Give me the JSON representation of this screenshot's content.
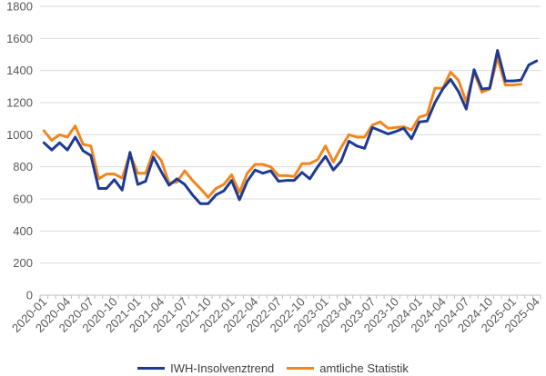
{
  "chart_data": {
    "type": "line",
    "title": "",
    "xlabel": "",
    "ylabel": "",
    "ylim": [
      0,
      1800
    ],
    "yticks": [
      "0",
      "200",
      "400",
      "600",
      "800",
      "1000",
      "1200",
      "1400",
      "1600",
      "1800"
    ],
    "grid": "horizontal",
    "legend": "bottom",
    "x_tick_labels": [
      "2020-01",
      "2020-04",
      "2020-07",
      "2020-10",
      "2021-01",
      "2021-04",
      "2021-07",
      "2021-10",
      "2022-01",
      "2022-04",
      "2022-07",
      "2022-10",
      "2023-01",
      "2023-04",
      "2023-07",
      "2023-10",
      "2024-01",
      "2024-04",
      "2024-07",
      "2024-10",
      "2025-01",
      "2025-04"
    ],
    "x": [
      "2020-01",
      "2020-02",
      "2020-03",
      "2020-04",
      "2020-05",
      "2020-06",
      "2020-07",
      "2020-08",
      "2020-09",
      "2020-10",
      "2020-11",
      "2020-12",
      "2021-01",
      "2021-02",
      "2021-03",
      "2021-04",
      "2021-05",
      "2021-06",
      "2021-07",
      "2021-08",
      "2021-09",
      "2021-10",
      "2021-11",
      "2021-12",
      "2022-01",
      "2022-02",
      "2022-03",
      "2022-04",
      "2022-05",
      "2022-06",
      "2022-07",
      "2022-08",
      "2022-09",
      "2022-10",
      "2022-11",
      "2022-12",
      "2023-01",
      "2023-02",
      "2023-03",
      "2023-04",
      "2023-05",
      "2023-06",
      "2023-07",
      "2023-08",
      "2023-09",
      "2023-10",
      "2023-11",
      "2023-12",
      "2024-01",
      "2024-02",
      "2024-03",
      "2024-04",
      "2024-05",
      "2024-06",
      "2024-07",
      "2024-08",
      "2024-09",
      "2024-10",
      "2024-11",
      "2024-12",
      "2025-01",
      "2025-02",
      "2025-03",
      "2025-04"
    ],
    "series": [
      {
        "name": "IWH-Insolvenztrend",
        "color": "#1F3A93",
        "values": [
          950,
          905,
          950,
          905,
          985,
          900,
          870,
          665,
          665,
          720,
          655,
          890,
          690,
          710,
          860,
          770,
          685,
          725,
          690,
          625,
          570,
          570,
          625,
          650,
          715,
          595,
          710,
          780,
          760,
          775,
          710,
          715,
          715,
          765,
          725,
          800,
          865,
          780,
          835,
          960,
          930,
          915,
          1045,
          1025,
          1005,
          1020,
          1040,
          975,
          1080,
          1085,
          1200,
          1285,
          1345,
          1270,
          1160,
          1405,
          1285,
          1290,
          1525,
          1335,
          1335,
          1340,
          1435,
          1460
        ]
      },
      {
        "name": "amtliche Statistik",
        "color": "#F0871E",
        "values": [
          1025,
          965,
          1000,
          985,
          1055,
          940,
          930,
          725,
          755,
          755,
          730,
          880,
          760,
          760,
          895,
          840,
          700,
          705,
          775,
          715,
          665,
          610,
          665,
          690,
          750,
          640,
          760,
          815,
          815,
          800,
          745,
          745,
          740,
          820,
          820,
          845,
          930,
          830,
          920,
          1000,
          985,
          985,
          1060,
          1080,
          1040,
          1045,
          1050,
          1030,
          1110,
          1125,
          1290,
          1290,
          1390,
          1340,
          1205,
          1390,
          1265,
          1285,
          1480,
          1310,
          1310,
          1315,
          null,
          null
        ]
      }
    ]
  }
}
